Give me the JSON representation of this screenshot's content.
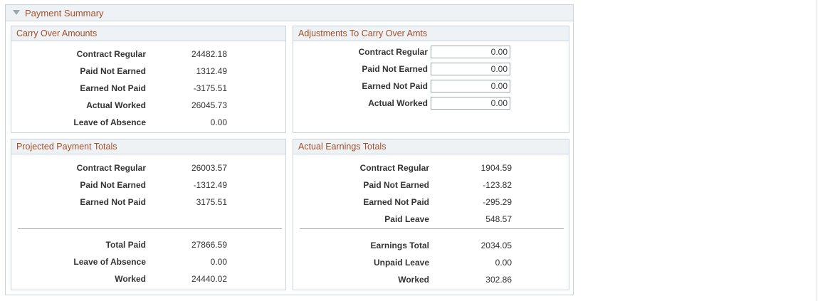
{
  "section": {
    "title": "Payment Summary"
  },
  "carry_over": {
    "title": "Carry Over Amounts",
    "rows": [
      {
        "label": "Contract Regular",
        "value": "24482.18"
      },
      {
        "label": "Paid Not Earned",
        "value": "1312.49"
      },
      {
        "label": "Earned Not Paid",
        "value": "-3175.51"
      },
      {
        "label": "Actual Worked",
        "value": "26045.73"
      },
      {
        "label": "Leave of Absence",
        "value": "0.00"
      }
    ]
  },
  "adjustments": {
    "title": "Adjustments To Carry Over Amts",
    "rows": [
      {
        "label": "Contract Regular",
        "value": "0.00"
      },
      {
        "label": "Paid Not Earned",
        "value": "0.00"
      },
      {
        "label": "Earned Not Paid",
        "value": "0.00"
      },
      {
        "label": "Actual Worked",
        "value": "0.00"
      }
    ]
  },
  "projected": {
    "title": "Projected Payment Totals",
    "rows": [
      {
        "label": "Contract Regular",
        "value": "26003.57"
      },
      {
        "label": "Paid Not Earned",
        "value": "-1312.49"
      },
      {
        "label": "Earned Not Paid",
        "value": "3175.51"
      }
    ],
    "totals": [
      {
        "label": "Total Paid",
        "value": "27866.59"
      },
      {
        "label": "Leave of Absence",
        "value": "0.00"
      },
      {
        "label": "Worked",
        "value": "24440.02"
      }
    ]
  },
  "actual": {
    "title": "Actual Earnings Totals",
    "rows": [
      {
        "label": "Contract Regular",
        "value": "1904.59"
      },
      {
        "label": "Paid Not Earned",
        "value": "-123.82"
      },
      {
        "label": "Earned Not Paid",
        "value": "-295.29"
      },
      {
        "label": "Paid Leave",
        "value": "548.57"
      }
    ],
    "totals": [
      {
        "label": "Earnings Total",
        "value": "2034.05"
      },
      {
        "label": "Unpaid Leave",
        "value": "0.00"
      },
      {
        "label": "Worked",
        "value": "302.86"
      }
    ]
  }
}
